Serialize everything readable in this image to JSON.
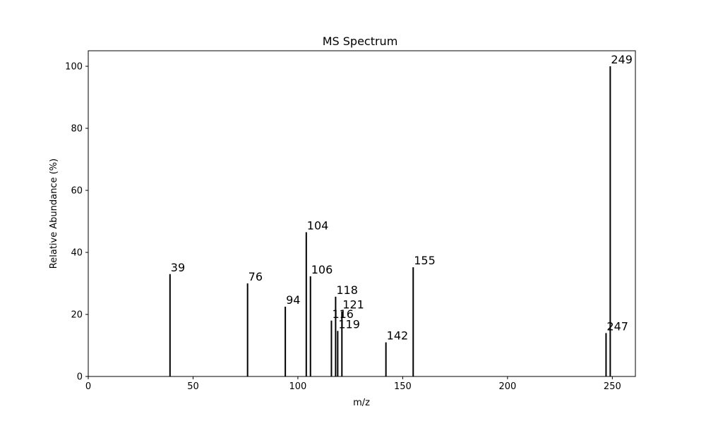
{
  "chart_data": {
    "type": "bar",
    "title": "MS Spectrum",
    "xlabel": "m/z",
    "ylabel": "Relative Abundance (%)",
    "xlim": [
      0,
      261
    ],
    "ylim": [
      0,
      105
    ],
    "xticks": [
      0,
      50,
      100,
      150,
      200,
      250
    ],
    "yticks": [
      0,
      20,
      40,
      60,
      80,
      100
    ],
    "grid": false,
    "bar_color": "#000000",
    "peaks": [
      {
        "mz": 39,
        "abundance": 33,
        "label": "39"
      },
      {
        "mz": 76,
        "abundance": 30,
        "label": "76"
      },
      {
        "mz": 94,
        "abundance": 22.5,
        "label": "94"
      },
      {
        "mz": 104,
        "abundance": 46.5,
        "label": "104"
      },
      {
        "mz": 106,
        "abundance": 32.3,
        "label": "106"
      },
      {
        "mz": 116,
        "abundance": 18,
        "label": "116"
      },
      {
        "mz": 118,
        "abundance": 25.7,
        "label": "118"
      },
      {
        "mz": 119,
        "abundance": 14.7,
        "label": "119"
      },
      {
        "mz": 121,
        "abundance": 21,
        "label": "121"
      },
      {
        "mz": 142,
        "abundance": 11,
        "label": "142"
      },
      {
        "mz": 155,
        "abundance": 35.2,
        "label": "155"
      },
      {
        "mz": 247,
        "abundance": 14,
        "label": "247"
      },
      {
        "mz": 249,
        "abundance": 100,
        "label": "249"
      }
    ]
  }
}
